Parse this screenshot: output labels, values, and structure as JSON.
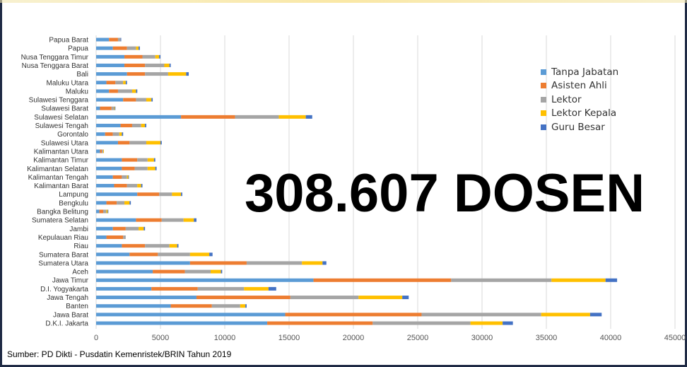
{
  "chart_data": {
    "type": "bar",
    "orientation": "horizontal",
    "stacked": true,
    "categories": [
      "D.K.I. Jakarta",
      "Jawa Barat",
      "Banten",
      "Jawa Tengah",
      "D.I. Yogyakarta",
      "Jawa Timur",
      "Aceh",
      "Sumatera Utara",
      "Sumatera Barat",
      "Riau",
      "Kepulauan Riau",
      "Jambi",
      "Sumatera Selatan",
      "Bangka Belitung",
      "Bengkulu",
      "Lampung",
      "Kalimantan Barat",
      "Kalimantan Tengah",
      "Kalimantan Selatan",
      "Kalimantan Timur",
      "Kalimantan Utara",
      "Sulawesi Utara",
      "Gorontalo",
      "Sulawesi Tengah",
      "Sulawesi Selatan",
      "Sulawesi Barat",
      "Sulawesi Tenggara",
      "Maluku",
      "Maluku Utara",
      "Bali",
      "Nusa Tenggara Barat",
      "Nusa Tenggara Timur",
      "Papua",
      "Papua Barat"
    ],
    "series": [
      {
        "name": "Tanpa Jabatan",
        "color": "#5b9bd5",
        "values": [
          13300,
          14700,
          5800,
          7800,
          4300,
          16900,
          4400,
          7300,
          2600,
          2000,
          800,
          1300,
          3100,
          250,
          800,
          3200,
          1400,
          1300,
          2000,
          2000,
          300,
          1700,
          700,
          1900,
          6600,
          300,
          2100,
          1000,
          800,
          2400,
          2200,
          2200,
          1300,
          1000
        ]
      },
      {
        "name": "Asisten Ahli",
        "color": "#ed7d31",
        "values": [
          8200,
          10600,
          3200,
          7300,
          3600,
          10700,
          2500,
          4400,
          2200,
          1800,
          1300,
          1000,
          2000,
          300,
          800,
          1700,
          1000,
          700,
          1000,
          1200,
          150,
          900,
          600,
          900,
          4200,
          900,
          1000,
          700,
          700,
          1400,
          1600,
          1400,
          1100,
          700
        ]
      },
      {
        "name": "Lektor",
        "color": "#a5a5a5",
        "values": [
          7600,
          9300,
          2200,
          5300,
          3600,
          7800,
          2000,
          4300,
          2500,
          1900,
          200,
          1000,
          1700,
          250,
          600,
          1000,
          800,
          400,
          1000,
          800,
          100,
          1300,
          500,
          700,
          3400,
          200,
          800,
          1100,
          600,
          1800,
          1500,
          1000,
          700,
          200
        ]
      },
      {
        "name": "Lektor Kepala",
        "color": "#ffc000",
        "values": [
          2500,
          3800,
          400,
          3400,
          1900,
          4200,
          800,
          1600,
          1500,
          600,
          0,
          400,
          800,
          100,
          400,
          700,
          300,
          100,
          600,
          500,
          50,
          1100,
          200,
          300,
          2100,
          50,
          400,
          300,
          200,
          1400,
          400,
          300,
          200,
          0
        ]
      },
      {
        "name": "Guru Besar",
        "color": "#4472c4",
        "values": [
          800,
          900,
          100,
          500,
          600,
          900,
          100,
          300,
          250,
          100,
          0,
          100,
          200,
          50,
          100,
          100,
          100,
          50,
          100,
          100,
          0,
          100,
          100,
          100,
          500,
          50,
          100,
          100,
          100,
          200,
          100,
          100,
          100,
          50
        ]
      }
    ],
    "xlim": [
      0,
      45000
    ],
    "xticks": [
      "0",
      "5000",
      "10000",
      "15000",
      "20000",
      "25000",
      "30000",
      "35000",
      "40000",
      "45000"
    ],
    "grid": true,
    "legend": "top-right",
    "annotation": "308.607 DOSEN"
  },
  "source_note": "Sumber: PD Dikti - Pusdatin Kemenristek/BRIN Tahun 2019"
}
